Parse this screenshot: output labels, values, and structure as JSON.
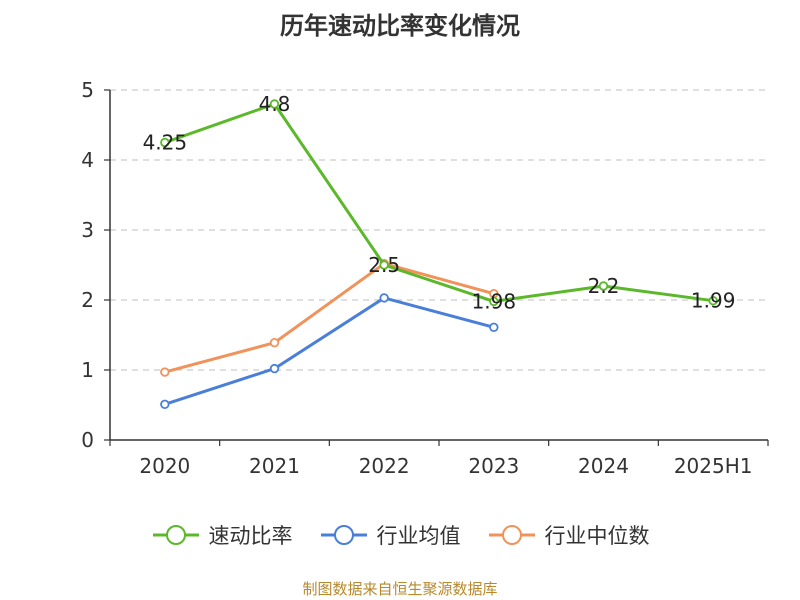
{
  "chart_data": {
    "type": "line",
    "title": "历年速动比率变化情况",
    "categories": [
      "2020",
      "2021",
      "2022",
      "2023",
      "2024",
      "2025H1"
    ],
    "ylim": [
      0,
      5
    ],
    "yticks": [
      0,
      1,
      2,
      3,
      4,
      5
    ],
    "grid": true,
    "legend_position": "bottom",
    "series": [
      {
        "name": "速动比率",
        "color": "#5cb82b",
        "values": [
          4.25,
          4.8,
          2.5,
          1.98,
          2.2,
          1.99
        ],
        "show_labels": true
      },
      {
        "name": "行业均值",
        "color": "#4a7fd9",
        "values": [
          0.51,
          1.02,
          2.03,
          1.61,
          null,
          null
        ],
        "show_labels": false
      },
      {
        "name": "行业中位数",
        "color": "#f0925a",
        "values": [
          0.97,
          1.39,
          2.52,
          2.09,
          null,
          null
        ],
        "show_labels": false
      }
    ],
    "data_labels": [
      "4.25",
      "4.8",
      "2.5",
      "1.98",
      "2.2",
      "1.99"
    ]
  },
  "footer": "制图数据来自恒生聚源数据库"
}
